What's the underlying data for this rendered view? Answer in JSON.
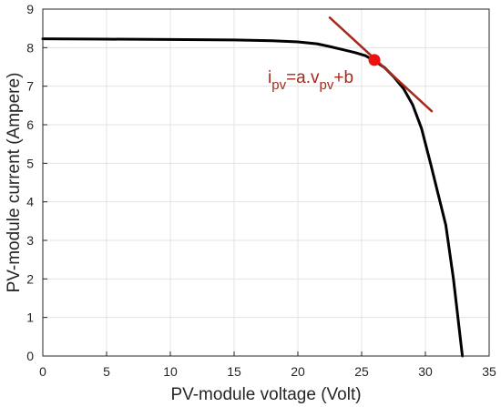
{
  "chart_data": {
    "type": "line",
    "title": "",
    "xlabel": "PV-module voltage (Volt)",
    "ylabel": "PV-module current (Ampere)",
    "xlim": [
      0,
      35
    ],
    "ylim": [
      0,
      9
    ],
    "xticks": [
      0,
      5,
      10,
      15,
      20,
      25,
      30,
      35
    ],
    "yticks": [
      0,
      1,
      2,
      3,
      4,
      5,
      6,
      7,
      8,
      9
    ],
    "grid": true,
    "series": [
      {
        "color": "#000000",
        "x": [
          0,
          5,
          10,
          15,
          18,
          20,
          21.5,
          22.5,
          23.5,
          24.5,
          25.3,
          26,
          26.8,
          27.5,
          28.3,
          29,
          29.7,
          30.4,
          31,
          31.6,
          32.2,
          32.9
        ],
        "y": [
          8.23,
          8.22,
          8.21,
          8.2,
          8.18,
          8.15,
          8.1,
          8.03,
          7.95,
          7.87,
          7.79,
          7.66,
          7.48,
          7.25,
          6.93,
          6.52,
          5.9,
          5.0,
          4.2,
          3.4,
          2.0,
          0.0
        ]
      },
      {
        "color": "#a52a1a",
        "x": [
          22.5,
          30.5
        ],
        "y": [
          8.78,
          6.35
        ]
      }
    ],
    "operating_point": {
      "x": 26,
      "y": 7.68,
      "color": "#ee1111"
    },
    "annotation": {
      "color": "#a52a1a",
      "segments": [
        {
          "text": "i",
          "sub": false
        },
        {
          "text": "pv",
          "sub": true
        },
        {
          "text": "=a.v",
          "sub": false
        },
        {
          "text": "pv",
          "sub": true
        },
        {
          "text": "+b",
          "sub": false
        }
      ]
    }
  }
}
